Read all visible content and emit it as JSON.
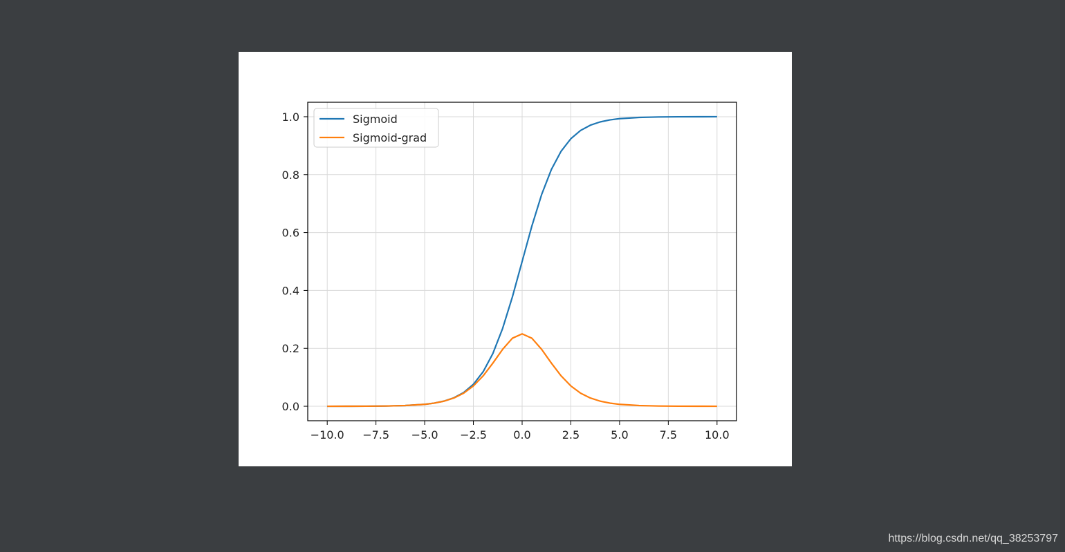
{
  "watermark": "https://blog.csdn.net/qq_38253797",
  "chart_data": {
    "type": "line",
    "title": "",
    "xlabel": "",
    "ylabel": "",
    "xlim": [
      -11,
      11
    ],
    "ylim": [
      -0.05,
      1.05
    ],
    "xticks": [
      -10.0,
      -7.5,
      -5.0,
      -2.5,
      0.0,
      2.5,
      5.0,
      7.5,
      10.0
    ],
    "xtick_labels": [
      "−10.0",
      "−7.5",
      "−5.0",
      "−2.5",
      "0.0",
      "2.5",
      "5.0",
      "7.5",
      "10.0"
    ],
    "yticks": [
      0.0,
      0.2,
      0.4,
      0.6,
      0.8,
      1.0
    ],
    "ytick_labels": [
      "0.0",
      "0.2",
      "0.4",
      "0.6",
      "0.8",
      "1.0"
    ],
    "grid": true,
    "legend_position": "top-left",
    "x": [
      -10,
      -9,
      -8,
      -7,
      -6,
      -5,
      -4.5,
      -4,
      -3.5,
      -3,
      -2.5,
      -2,
      -1.5,
      -1,
      -0.5,
      0,
      0.5,
      1,
      1.5,
      2,
      2.5,
      3,
      3.5,
      4,
      4.5,
      5,
      6,
      7,
      8,
      9,
      10
    ],
    "series": [
      {
        "name": "Sigmoid",
        "color": "#1f77b4",
        "values": [
          0.0,
          0.0001,
          0.0003,
          0.0009,
          0.0025,
          0.0067,
          0.011,
          0.018,
          0.0293,
          0.0474,
          0.0759,
          0.1192,
          0.1824,
          0.2689,
          0.3775,
          0.5,
          0.6225,
          0.7311,
          0.8176,
          0.8808,
          0.9241,
          0.9526,
          0.9707,
          0.982,
          0.989,
          0.9933,
          0.9975,
          0.9991,
          0.9997,
          0.9999,
          1.0
        ]
      },
      {
        "name": "Sigmoid-grad",
        "color": "#ff7f0e",
        "values": [
          0.0,
          0.0001,
          0.0003,
          0.0009,
          0.0025,
          0.0066,
          0.0109,
          0.0177,
          0.0285,
          0.0452,
          0.0701,
          0.105,
          0.1491,
          0.1966,
          0.235,
          0.25,
          0.235,
          0.1966,
          0.1491,
          0.105,
          0.0701,
          0.0452,
          0.0285,
          0.0177,
          0.0109,
          0.0066,
          0.0025,
          0.0009,
          0.0003,
          0.0001,
          0.0
        ]
      }
    ]
  }
}
